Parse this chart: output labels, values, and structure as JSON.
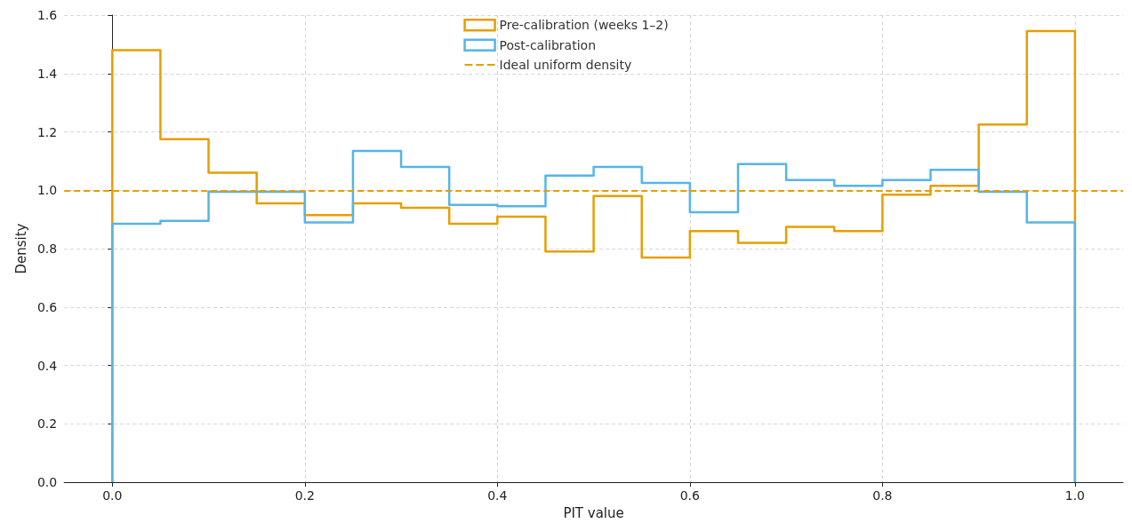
{
  "chart_data": {
    "type": "histogram",
    "xlabel": "PIT value",
    "ylabel": "Density",
    "bins": [
      0,
      0.05,
      0.1,
      0.15,
      0.2,
      0.25,
      0.3,
      0.35,
      0.4,
      0.45,
      0.5,
      0.55,
      0.6,
      0.65,
      0.7,
      0.75,
      0.8,
      0.85,
      0.9,
      0.95,
      1.0
    ],
    "series": [
      {
        "name": "Pre-calibration (weeks 1–2)",
        "color": "#e69f00",
        "values": [
          1.48,
          1.175,
          1.06,
          0.955,
          0.915,
          0.955,
          0.94,
          0.885,
          0.91,
          0.79,
          0.98,
          0.77,
          0.86,
          0.82,
          0.875,
          0.86,
          0.985,
          1.015,
          1.225,
          1.545
        ]
      },
      {
        "name": "Post-calibration",
        "color": "#56b4e9",
        "values": [
          0.885,
          0.895,
          0.995,
          0.995,
          0.89,
          1.135,
          1.08,
          0.95,
          0.945,
          1.05,
          1.08,
          1.025,
          0.925,
          1.09,
          1.035,
          1.015,
          1.035,
          1.07,
          0.995,
          0.89
        ]
      }
    ],
    "ref_lines": [
      {
        "axis": "y",
        "value": 1.0,
        "label": "Ideal uniform density",
        "color": "#e69f00",
        "line_style": "dashed"
      }
    ],
    "xlim": [
      -0.05,
      1.05
    ],
    "xticks": [
      {
        "value": 0,
        "label": "0.0"
      },
      {
        "value": 0.2,
        "label": "0.2"
      },
      {
        "value": 0.4,
        "label": "0.4"
      },
      {
        "value": 0.6,
        "label": "0.6"
      },
      {
        "value": 0.8,
        "label": "0.8"
      },
      {
        "value": 1.0,
        "label": "1.0"
      }
    ],
    "ylim": [
      0,
      1.6
    ],
    "yticks": [
      {
        "value": 0,
        "label": "0.0"
      },
      {
        "value": 0.2,
        "label": "0.2"
      },
      {
        "value": 0.4,
        "label": "0.4"
      },
      {
        "value": 0.6,
        "label": "0.6"
      },
      {
        "value": 0.8,
        "label": "0.8"
      },
      {
        "value": 1.0,
        "label": "1.0"
      },
      {
        "value": 1.2,
        "label": "1.2"
      },
      {
        "value": 1.4,
        "label": "1.4"
      },
      {
        "value": 1.6,
        "label": "1.6"
      }
    ],
    "grid": true,
    "legend": "top"
  }
}
